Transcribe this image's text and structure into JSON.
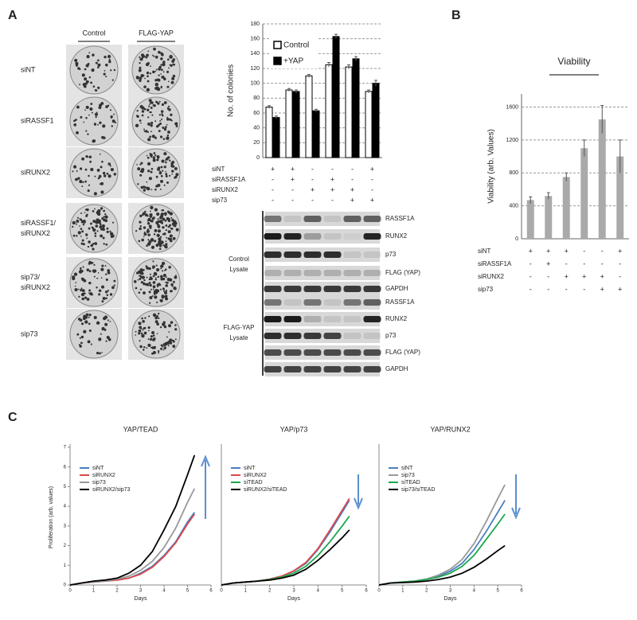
{
  "panel_a": {
    "label": "A",
    "colonies": {
      "column_headers": [
        "Control",
        "FLAG-YAP"
      ],
      "row_labels": [
        [
          "siNT"
        ],
        [
          "siRASSF1"
        ],
        [
          "siRUNX2"
        ],
        [
          "siRASSF1/",
          "siRUNX2"
        ],
        [
          "sip73/",
          "siRUNX2"
        ],
        [
          "sip73"
        ]
      ]
    },
    "bar_chart": {
      "type": "bar",
      "ylabel": "No. of colonies",
      "ylim": [
        0,
        180
      ],
      "yticks": [
        0,
        20,
        40,
        60,
        80,
        100,
        120,
        140,
        160,
        180
      ],
      "grid": true,
      "series": [
        {
          "name": "Control",
          "color": "#ffffff",
          "values": [
            68,
            91,
            110,
            125,
            122,
            89
          ],
          "errors": [
            2,
            2,
            2,
            3,
            3,
            2
          ]
        },
        {
          "name": "+YAP",
          "color": "#000000",
          "values": [
            54,
            89,
            63,
            163,
            133,
            100
          ],
          "errors": [
            2,
            2,
            2,
            3,
            3,
            4
          ]
        }
      ],
      "conditions": [
        {
          "label": "siNT",
          "values": [
            "+",
            "+",
            "-",
            "-",
            "-",
            "+"
          ]
        },
        {
          "label": "siRASSF1A",
          "values": [
            "-",
            "+",
            "-",
            "+",
            "-",
            "-"
          ]
        },
        {
          "label": "siRUNX2",
          "values": [
            "-",
            "-",
            "+",
            "+",
            "+",
            "-"
          ]
        },
        {
          "label": "sip73",
          "values": [
            "-",
            "-",
            "-",
            "-",
            "+",
            "+"
          ]
        }
      ]
    },
    "blot": {
      "groups": [
        {
          "label": [
            "Control",
            "Lysate"
          ],
          "bands": [
            "RASSF1A",
            "RUNX2",
            "p73",
            "FLAG (YAP)",
            "GAPDH"
          ]
        },
        {
          "label": [
            "FLAG-YAP",
            "Lysate"
          ],
          "bands": [
            "RASSF1A",
            "RUNX2",
            "p73",
            "FLAG (YAP)",
            "GAPDH"
          ]
        }
      ]
    }
  },
  "panel_b": {
    "label": "B",
    "chart": {
      "type": "bar",
      "title": "Viability",
      "ylabel": "Viability (arb. Values)",
      "ylim": [
        0,
        1760
      ],
      "yticks": [
        0,
        400,
        800,
        1200,
        1600
      ],
      "grid": true,
      "color": "#aaaaaa",
      "values": [
        470,
        520,
        750,
        1100,
        1450,
        1000
      ],
      "errors": [
        40,
        40,
        50,
        100,
        170,
        200
      ],
      "conditions": [
        {
          "label": "siNT",
          "values": [
            "+",
            "+",
            "+",
            "-",
            "-",
            "+"
          ]
        },
        {
          "label": "siRASSF1A",
          "values": [
            "-",
            "+",
            "-",
            "-",
            "-",
            "-"
          ]
        },
        {
          "label": "siRUNX2",
          "values": [
            "-",
            "-",
            "+",
            "+",
            "+",
            "-"
          ]
        },
        {
          "label": "sip73",
          "values": [
            "-",
            "-",
            "-",
            "-",
            "+",
            "+"
          ]
        }
      ]
    }
  },
  "panel_c": {
    "label": "C",
    "charts": [
      {
        "type": "line",
        "title": "YAP/TEAD",
        "xlabel": "Days",
        "ylabel": "Proliferation (arb. values)",
        "xlim": [
          0,
          6
        ],
        "xticks": [
          0,
          1,
          2,
          3,
          4,
          5,
          6
        ],
        "ylim": [
          0,
          7
        ],
        "yticks": [
          0,
          1,
          2,
          3,
          4,
          5,
          6,
          7
        ],
        "x": [
          0,
          0.5,
          1,
          1.5,
          2,
          2.5,
          3,
          3.5,
          4,
          4.5,
          5,
          5.3
        ],
        "series": [
          {
            "name": "siNT",
            "color": "#4a7fc1",
            "values": [
              0,
              0.1,
              0.15,
              0.2,
              0.25,
              0.35,
              0.6,
              0.95,
              1.5,
              2.2,
              3.2,
              3.7
            ]
          },
          {
            "name": "siRUNX2",
            "color": "#d94a4a",
            "values": [
              0,
              0.1,
              0.15,
              0.2,
              0.25,
              0.35,
              0.55,
              0.9,
              1.45,
              2.15,
              3.1,
              3.6
            ]
          },
          {
            "name": "sip73",
            "color": "#999999",
            "values": [
              0,
              0.1,
              0.15,
              0.2,
              0.3,
              0.45,
              0.75,
              1.2,
              1.9,
              2.9,
              4.2,
              4.9
            ]
          },
          {
            "name": "siRUNX2/sip73",
            "color": "#000000",
            "values": [
              0,
              0.1,
              0.2,
              0.25,
              0.35,
              0.6,
              1.0,
              1.7,
              2.8,
              4.0,
              5.6,
              6.6
            ]
          }
        ]
      },
      {
        "type": "line",
        "title": "YAP/p73",
        "xlabel": "Days",
        "xlim": [
          0,
          6
        ],
        "xticks": [
          0,
          1,
          2,
          3,
          4,
          5,
          6
        ],
        "ylim": [
          0,
          7
        ],
        "x": [
          0,
          0.5,
          1,
          1.5,
          2,
          2.5,
          3,
          3.5,
          4,
          4.5,
          5,
          5.3
        ],
        "series": [
          {
            "name": "siNT",
            "color": "#4a7fc1",
            "values": [
              0,
              0.1,
              0.15,
              0.2,
              0.3,
              0.45,
              0.7,
              1.1,
              1.8,
              2.7,
              3.7,
              4.3
            ]
          },
          {
            "name": "siRUNX2",
            "color": "#d94a4a",
            "values": [
              0,
              0.1,
              0.15,
              0.2,
              0.3,
              0.45,
              0.72,
              1.15,
              1.85,
              2.8,
              3.8,
              4.4
            ]
          },
          {
            "name": "siTEAD",
            "color": "#1aa84a",
            "values": [
              0,
              0.1,
              0.15,
              0.2,
              0.28,
              0.4,
              0.6,
              0.95,
              1.5,
              2.2,
              3.0,
              3.5
            ]
          },
          {
            "name": "siRUNX2/siTEAD",
            "color": "#000000",
            "values": [
              0,
              0.1,
              0.15,
              0.2,
              0.25,
              0.35,
              0.5,
              0.8,
              1.25,
              1.8,
              2.4,
              2.8
            ]
          }
        ]
      },
      {
        "type": "line",
        "title": "YAP/RUNX2",
        "xlabel": "Days",
        "xlim": [
          0,
          6
        ],
        "xticks": [
          0,
          1,
          2,
          3,
          4,
          5,
          6
        ],
        "ylim": [
          0,
          7
        ],
        "x": [
          0,
          0.5,
          1,
          1.5,
          2,
          2.5,
          3,
          3.5,
          4,
          4.5,
          5,
          5.3
        ],
        "series": [
          {
            "name": "siNT",
            "color": "#4a7fc1",
            "values": [
              0,
              0.1,
              0.15,
              0.2,
              0.3,
              0.45,
              0.7,
              1.1,
              1.8,
              2.7,
              3.7,
              4.3
            ]
          },
          {
            "name": "sip73",
            "color": "#999999",
            "values": [
              0,
              0.1,
              0.15,
              0.2,
              0.3,
              0.5,
              0.8,
              1.3,
              2.1,
              3.2,
              4.4,
              5.1
            ]
          },
          {
            "name": "siTEAD",
            "color": "#1aa84a",
            "values": [
              0,
              0.1,
              0.15,
              0.2,
              0.28,
              0.4,
              0.6,
              0.95,
              1.5,
              2.3,
              3.1,
              3.6
            ]
          },
          {
            "name": "sip73/siTEAD",
            "color": "#000000",
            "values": [
              0,
              0.1,
              0.12,
              0.15,
              0.2,
              0.28,
              0.4,
              0.6,
              0.9,
              1.3,
              1.75,
              2.0
            ]
          }
        ]
      }
    ]
  }
}
